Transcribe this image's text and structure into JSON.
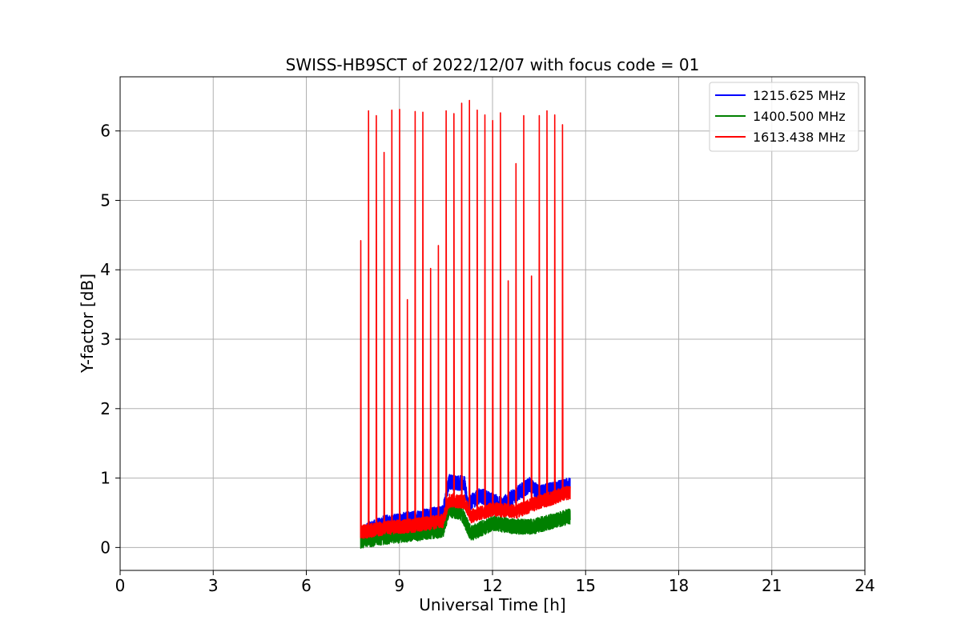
{
  "chart_data": {
    "type": "line",
    "title": "SWISS-HB9SCT of 2022/12/07 with focus code = 01",
    "xlabel": "Universal Time [h]",
    "ylabel": "Y-factor [dB]",
    "xlim": [
      0,
      24
    ],
    "ylim": [
      -0.33,
      6.78
    ],
    "xticks": [
      0,
      3,
      6,
      9,
      12,
      15,
      18,
      21,
      24
    ],
    "yticks": [
      0,
      1,
      2,
      3,
      4,
      5,
      6
    ],
    "grid": true,
    "legend_position": "top-right",
    "series": [
      {
        "name": "1215.625 MHz",
        "color": "#0000ff",
        "baseline": [
          [
            7.75,
            0.2
          ],
          [
            8.5,
            0.35
          ],
          [
            9.5,
            0.42
          ],
          [
            10.4,
            0.5
          ],
          [
            10.6,
            0.95
          ],
          [
            11.1,
            0.92
          ],
          [
            11.2,
            0.62
          ],
          [
            11.6,
            0.75
          ],
          [
            12.3,
            0.62
          ],
          [
            13.2,
            0.9
          ],
          [
            13.5,
            0.78
          ],
          [
            14.5,
            0.9
          ]
        ],
        "noise": 0.22,
        "peaks": []
      },
      {
        "name": "1400.500 MHz",
        "color": "#008000",
        "baseline": [
          [
            7.75,
            0.1
          ],
          [
            8.5,
            0.15
          ],
          [
            9.5,
            0.2
          ],
          [
            10.4,
            0.25
          ],
          [
            10.6,
            0.55
          ],
          [
            11.0,
            0.5
          ],
          [
            11.3,
            0.2
          ],
          [
            12.0,
            0.35
          ],
          [
            12.8,
            0.3
          ],
          [
            13.3,
            0.3
          ],
          [
            14.5,
            0.45
          ]
        ],
        "noise": 0.22,
        "peaks": []
      },
      {
        "name": "1613.438 MHz",
        "color": "#ff0000",
        "baseline": [
          [
            7.75,
            0.22
          ],
          [
            8.5,
            0.28
          ],
          [
            9.5,
            0.32
          ],
          [
            10.4,
            0.38
          ],
          [
            10.6,
            0.68
          ],
          [
            11.1,
            0.66
          ],
          [
            11.3,
            0.45
          ],
          [
            12.0,
            0.55
          ],
          [
            12.8,
            0.52
          ],
          [
            13.3,
            0.62
          ],
          [
            14.5,
            0.8
          ]
        ],
        "noise": 0.2,
        "peaks": [
          [
            7.75,
            4.42
          ],
          [
            8.0,
            6.29
          ],
          [
            8.25,
            6.22
          ],
          [
            8.5,
            5.69
          ],
          [
            8.75,
            6.3
          ],
          [
            9.0,
            6.31
          ],
          [
            9.25,
            3.57
          ],
          [
            9.5,
            6.28
          ],
          [
            9.75,
            6.27
          ],
          [
            10.0,
            4.02
          ],
          [
            10.25,
            4.35
          ],
          [
            10.5,
            6.29
          ],
          [
            10.75,
            6.25
          ],
          [
            11.0,
            6.4
          ],
          [
            11.25,
            6.44
          ],
          [
            11.5,
            6.3
          ],
          [
            11.75,
            6.23
          ],
          [
            12.0,
            6.15
          ],
          [
            12.25,
            6.26
          ],
          [
            12.5,
            3.84
          ],
          [
            12.75,
            5.53
          ],
          [
            13.0,
            6.22
          ],
          [
            13.25,
            3.91
          ],
          [
            13.5,
            6.22
          ],
          [
            13.75,
            6.29
          ],
          [
            14.0,
            6.23
          ],
          [
            14.25,
            6.09
          ]
        ]
      }
    ]
  }
}
